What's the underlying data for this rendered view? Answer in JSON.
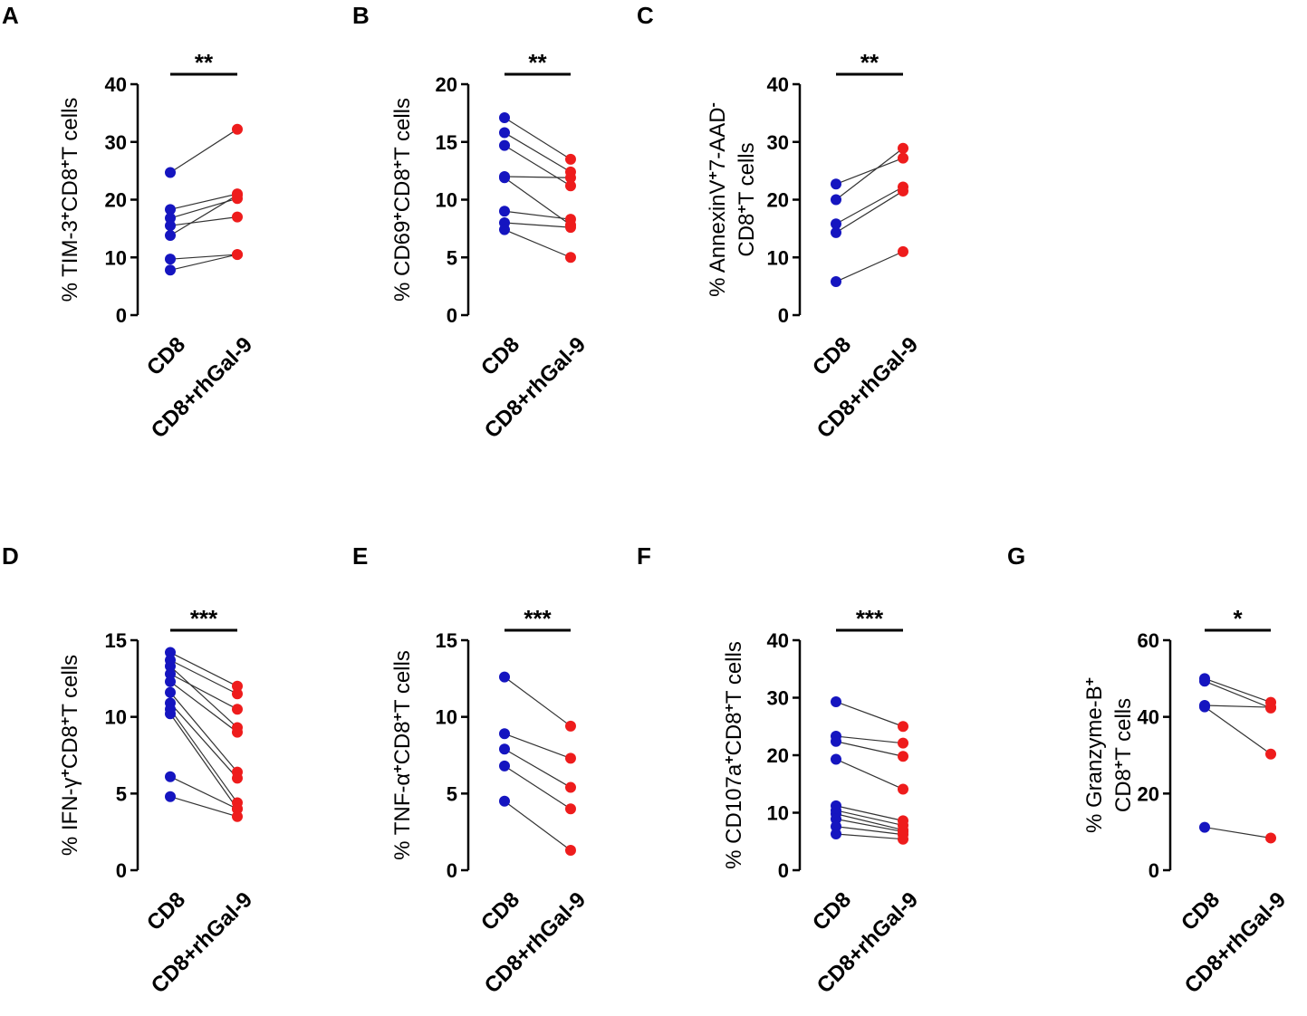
{
  "colors": {
    "group_a": "#1515c0",
    "group_b": "#ee1c1c",
    "axis": "#000000"
  },
  "chart_data": [
    {
      "type": "scatter",
      "panel": "A",
      "categories": [
        "CD8",
        "CD8+rhGal-9"
      ],
      "ylabel": {
        "lines": [
          [
            [
              "% TIM-3",
              ""
            ],
            [
              "+",
              "sup"
            ],
            [
              "CD8",
              ""
            ],
            [
              "+",
              "sup"
            ],
            [
              "T cells",
              ""
            ]
          ]
        ]
      },
      "ylim": [
        0,
        40
      ],
      "yticks": [
        0,
        10,
        20,
        30,
        40
      ],
      "significance": "**",
      "pairs": [
        [
          24.7,
          32.2
        ],
        [
          18.3,
          21.0
        ],
        [
          16.8,
          20.2
        ],
        [
          15.5,
          17.0
        ],
        [
          13.8,
          20.8
        ],
        [
          9.7,
          10.5
        ],
        [
          7.8,
          10.5
        ]
      ]
    },
    {
      "type": "scatter",
      "panel": "B",
      "categories": [
        "CD8",
        "CD8+rhGal-9"
      ],
      "ylabel": {
        "lines": [
          [
            [
              "% CD69",
              ""
            ],
            [
              "+",
              "sup"
            ],
            [
              "CD8",
              ""
            ],
            [
              "+",
              "sup"
            ],
            [
              "T cells",
              ""
            ]
          ]
        ]
      },
      "ylim": [
        0,
        20
      ],
      "yticks": [
        0,
        5,
        10,
        15,
        20
      ],
      "significance": "**",
      "pairs": [
        [
          17.1,
          13.5
        ],
        [
          15.8,
          12.4
        ],
        [
          14.7,
          11.2
        ],
        [
          12.0,
          11.9
        ],
        [
          11.9,
          7.8
        ],
        [
          9.0,
          8.3
        ],
        [
          8.0,
          7.6
        ],
        [
          7.4,
          5.0
        ]
      ]
    },
    {
      "type": "scatter",
      "panel": "C",
      "categories": [
        "CD8",
        "CD8+rhGal-9"
      ],
      "ylabel": {
        "lines": [
          [
            [
              "% AnnexinV",
              ""
            ],
            [
              "+",
              "sup"
            ],
            [
              "7-AAD",
              ""
            ],
            [
              "-",
              "sup"
            ]
          ],
          [
            [
              "CD8",
              ""
            ],
            [
              "+",
              "sup"
            ],
            [
              "T cells",
              ""
            ]
          ]
        ]
      },
      "ylim": [
        0,
        40
      ],
      "yticks": [
        0,
        10,
        20,
        30,
        40
      ],
      "significance": "**",
      "pairs": [
        [
          22.7,
          27.2
        ],
        [
          20.0,
          28.9
        ],
        [
          15.8,
          22.2
        ],
        [
          14.3,
          21.5
        ],
        [
          5.8,
          11.0
        ]
      ]
    },
    {
      "type": "scatter",
      "panel": "D",
      "categories": [
        "CD8",
        "CD8+rhGal-9"
      ],
      "ylabel": {
        "lines": [
          [
            [
              "% IFN-γ",
              ""
            ],
            [
              "+",
              "sup"
            ],
            [
              "CD8",
              ""
            ],
            [
              "+",
              "sup"
            ],
            [
              "T cells",
              ""
            ]
          ]
        ]
      },
      "ylim": [
        0,
        15
      ],
      "yticks": [
        0,
        5,
        10,
        15
      ],
      "significance": "***",
      "pairs": [
        [
          14.2,
          12.0
        ],
        [
          13.7,
          11.5
        ],
        [
          13.3,
          9.3
        ],
        [
          12.8,
          10.5
        ],
        [
          12.3,
          9.0
        ],
        [
          11.6,
          6.4
        ],
        [
          10.9,
          6.0
        ],
        [
          10.5,
          4.4
        ],
        [
          10.2,
          4.0
        ],
        [
          6.1,
          4.0
        ],
        [
          4.8,
          3.5
        ]
      ]
    },
    {
      "type": "scatter",
      "panel": "E",
      "categories": [
        "CD8",
        "CD8+rhGal-9"
      ],
      "ylabel": {
        "lines": [
          [
            [
              "% TNF-α",
              ""
            ],
            [
              "+",
              "sup"
            ],
            [
              "CD8",
              ""
            ],
            [
              "+",
              "sup"
            ],
            [
              "T cells",
              ""
            ]
          ]
        ]
      },
      "ylim": [
        0,
        15
      ],
      "yticks": [
        0,
        5,
        10,
        15
      ],
      "significance": "***",
      "pairs": [
        [
          12.6,
          9.4
        ],
        [
          8.9,
          7.3
        ],
        [
          7.9,
          5.4
        ],
        [
          6.8,
          4.0
        ],
        [
          4.5,
          1.3
        ]
      ]
    },
    {
      "type": "scatter",
      "panel": "F",
      "categories": [
        "CD8",
        "CD8+rhGal-9"
      ],
      "ylabel": {
        "lines": [
          [
            [
              "% CD107a",
              ""
            ],
            [
              "+",
              "sup"
            ],
            [
              "CD8",
              ""
            ],
            [
              "+",
              "sup"
            ],
            [
              "T cells",
              ""
            ]
          ]
        ]
      },
      "ylim": [
        0,
        40
      ],
      "yticks": [
        0,
        10,
        20,
        30,
        40
      ],
      "significance": "***",
      "pairs": [
        [
          29.3,
          25.0
        ],
        [
          23.3,
          22.1
        ],
        [
          22.4,
          19.8
        ],
        [
          19.3,
          14.1
        ],
        [
          11.2,
          8.6
        ],
        [
          10.4,
          7.8
        ],
        [
          9.8,
          7.0
        ],
        [
          8.9,
          6.7
        ],
        [
          7.6,
          6.2
        ],
        [
          6.3,
          5.4
        ]
      ]
    },
    {
      "type": "scatter",
      "panel": "G",
      "categories": [
        "CD8",
        "CD8+rhGal-9"
      ],
      "ylabel": {
        "lines": [
          [
            [
              "% Granzyme-B",
              ""
            ],
            [
              "+",
              "sup"
            ]
          ],
          [
            [
              "CD8",
              ""
            ],
            [
              "+",
              "sup"
            ],
            [
              "T cells",
              ""
            ]
          ]
        ]
      },
      "ylim": [
        0,
        60
      ],
      "yticks": [
        0,
        20,
        40,
        60
      ],
      "significance": "*",
      "pairs": [
        [
          50.0,
          43.8
        ],
        [
          49.3,
          42.3
        ],
        [
          43.0,
          42.5
        ],
        [
          42.6,
          30.3
        ],
        [
          11.2,
          8.4
        ]
      ]
    }
  ]
}
